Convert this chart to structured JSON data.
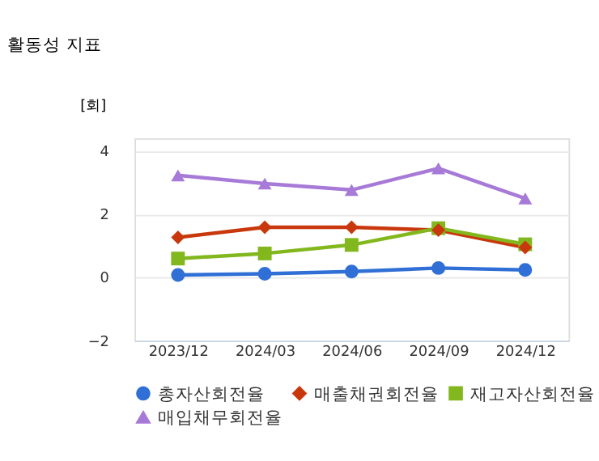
{
  "chart_data": {
    "type": "line",
    "title": "활동성 지표",
    "ylabel": "[회]",
    "categories": [
      "2023/12",
      "2024/03",
      "2024/06",
      "2024/09",
      "2024/12"
    ],
    "series": [
      {
        "name": "총자산회전율",
        "color": "#2f6fd6",
        "marker": "circle",
        "values": [
          0.08,
          0.12,
          0.19,
          0.3,
          0.24
        ]
      },
      {
        "name": "매출채권회전율",
        "color": "#c8380c",
        "marker": "diamond",
        "values": [
          1.27,
          1.59,
          1.59,
          1.5,
          0.95
        ]
      },
      {
        "name": "재고자산회전율",
        "color": "#82b81e",
        "marker": "square",
        "values": [
          0.6,
          0.76,
          1.03,
          1.56,
          1.05
        ]
      },
      {
        "name": "매입채무회전율",
        "color": "#a77ad8",
        "marker": "triangle",
        "values": [
          3.23,
          2.97,
          2.77,
          3.45,
          2.5
        ]
      }
    ],
    "ylim": [
      -2,
      4.4
    ],
    "yticks": [
      -2,
      0,
      2,
      4
    ],
    "grid": "y",
    "legend": "bottom",
    "line_style": "solid"
  }
}
